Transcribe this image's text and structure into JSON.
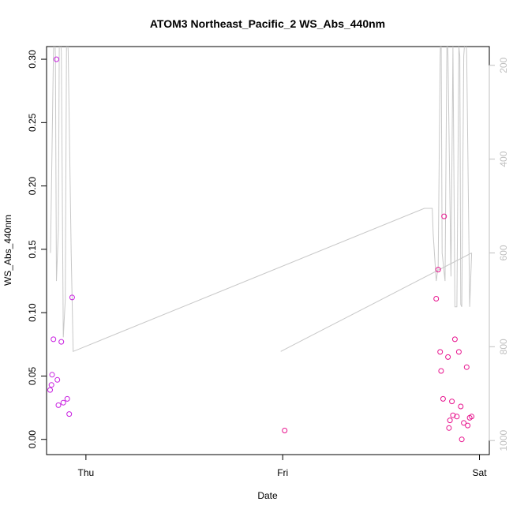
{
  "chart_data": {
    "type": "scatter",
    "title": "ATOM3 Northeast_Pacific_2 WS_Abs_440nm",
    "xlabel": "Date",
    "ylabel": "WS_Abs_440nm",
    "x_unit": "days since Thu 00:00",
    "xlim": [
      -0.2,
      2.05
    ],
    "ylim": [
      -0.012,
      0.31
    ],
    "x_ticks": [
      {
        "value": 0,
        "label": "Thu"
      },
      {
        "value": 1,
        "label": "Fri"
      },
      {
        "value": 2,
        "label": "Sat"
      }
    ],
    "y_ticks": [
      {
        "value": 0.0,
        "label": "0.00"
      },
      {
        "value": 0.05,
        "label": "0.05"
      },
      {
        "value": 0.1,
        "label": "0.10"
      },
      {
        "value": 0.15,
        "label": "0.15"
      },
      {
        "value": 0.2,
        "label": "0.20"
      },
      {
        "value": 0.25,
        "label": "0.25"
      },
      {
        "value": 0.3,
        "label": "0.30"
      }
    ],
    "y2_reversed": true,
    "y2lim": [
      1030,
      160
    ],
    "y2_ticks": [
      {
        "value": 200,
        "label": "200"
      },
      {
        "value": 400,
        "label": "400"
      },
      {
        "value": 600,
        "label": "600"
      },
      {
        "value": 800,
        "label": "800"
      },
      {
        "value": 1000,
        "label": "1000"
      }
    ],
    "grid": false,
    "colors": {
      "points": "#e8138e",
      "points_alt": "#c81ee0",
      "line": "#c8c8c8",
      "axis_right": "#bfbfbf"
    },
    "series": [
      {
        "type": "scatter",
        "points": [
          [
            -0.15,
            0.3
          ],
          [
            -0.165,
            0.079
          ],
          [
            -0.125,
            0.077
          ],
          [
            -0.07,
            0.112
          ],
          [
            -0.172,
            0.051
          ],
          [
            -0.175,
            0.043
          ],
          [
            -0.182,
            0.039
          ],
          [
            -0.145,
            0.047
          ],
          [
            -0.14,
            0.027
          ],
          [
            -0.115,
            0.029
          ],
          [
            -0.095,
            0.032
          ],
          [
            -0.085,
            0.02
          ],
          [
            1.01,
            0.007
          ],
          [
            1.78,
            0.111
          ],
          [
            1.79,
            0.134
          ],
          [
            1.82,
            0.176
          ],
          [
            1.8,
            0.069
          ],
          [
            1.805,
            0.054
          ],
          [
            1.815,
            0.032
          ],
          [
            1.84,
            0.065
          ],
          [
            1.845,
            0.009
          ],
          [
            1.85,
            0.015
          ],
          [
            1.86,
            0.03
          ],
          [
            1.865,
            0.019
          ],
          [
            1.875,
            0.079
          ],
          [
            1.885,
            0.018
          ],
          [
            1.895,
            0.069
          ],
          [
            1.905,
            0.026
          ],
          [
            1.91,
            0.0
          ],
          [
            1.92,
            0.013
          ],
          [
            1.935,
            0.057
          ],
          [
            1.94,
            0.011
          ],
          [
            1.95,
            0.017
          ],
          [
            1.96,
            0.018
          ]
        ]
      },
      {
        "type": "line",
        "axis": "right",
        "points": [
          [
            -0.18,
            600
          ],
          [
            -0.165,
            175
          ],
          [
            -0.16,
            110
          ],
          [
            -0.155,
            180
          ],
          [
            -0.15,
            660
          ],
          [
            -0.14,
            550
          ],
          [
            -0.135,
            120
          ],
          [
            -0.125,
            170
          ],
          [
            -0.115,
            780
          ],
          [
            -0.105,
            700
          ],
          [
            -0.098,
            110
          ],
          [
            -0.09,
            170
          ],
          [
            -0.075,
            600
          ],
          [
            -0.065,
            810
          ],
          [
            1.72,
            505
          ],
          [
            1.76,
            505
          ],
          [
            1.765,
            560
          ],
          [
            1.78,
            660
          ],
          [
            1.79,
            630
          ],
          [
            1.8,
            180
          ],
          [
            1.805,
            110
          ],
          [
            1.81,
            600
          ],
          [
            1.825,
            660
          ],
          [
            1.835,
            120
          ],
          [
            1.84,
            180
          ],
          [
            1.855,
            650
          ],
          [
            1.865,
            160
          ],
          [
            1.875,
            715
          ],
          [
            1.885,
            715
          ],
          [
            1.895,
            160
          ],
          [
            1.9,
            180
          ],
          [
            1.905,
            710
          ],
          [
            1.91,
            715
          ],
          [
            1.92,
            180
          ],
          [
            1.93,
            120
          ],
          [
            1.935,
            175
          ],
          [
            1.95,
            715
          ],
          [
            1.96,
            600
          ]
        ]
      },
      {
        "type": "line",
        "axis": "right",
        "points": [
          [
            0.99,
            810
          ],
          [
            1.96,
            600
          ]
        ]
      }
    ]
  }
}
